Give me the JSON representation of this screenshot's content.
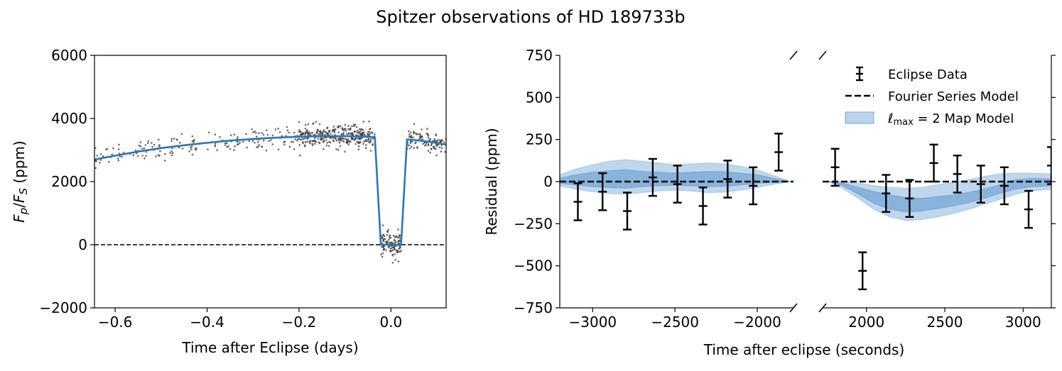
{
  "figure_title": "Spitzer observations of HD 189733b",
  "colors": {
    "model_line": "#2878b5",
    "band_outer": "#a9c9e6",
    "band_inner": "#7aaad6",
    "scatter": "#3a3a3a",
    "errorbar": "#000000"
  },
  "chart_data": [
    {
      "type": "scatter",
      "ylabel_html": "F_p/F_S (ppm)",
      "ylabel": {
        "base1": "F",
        "sub1": "p",
        "sep": "/",
        "base2": "F",
        "sub2": "S",
        "unit": " (ppm)"
      },
      "xlabel": "Time after Eclipse (days)",
      "xlim": [
        -0.645,
        0.12
      ],
      "ylim": [
        -2000,
        6000
      ],
      "xticks": [
        -0.6,
        -0.4,
        -0.2,
        0.0
      ],
      "xtick_labels": [
        "−0.6",
        "−0.4",
        "−0.2",
        "0.0"
      ],
      "yticks": [
        -2000,
        0,
        2000,
        4000,
        6000
      ],
      "ytick_labels": [
        "−2000",
        "0",
        "2000",
        "4000",
        "6000"
      ],
      "zero_line": {
        "y": 0,
        "style": "dashed"
      },
      "model": {
        "name": "",
        "x": [
          -0.645,
          -0.6,
          -0.55,
          -0.5,
          -0.45,
          -0.4,
          -0.35,
          -0.3,
          -0.25,
          -0.2,
          -0.15,
          -0.1,
          -0.05,
          -0.035,
          -0.022,
          0.022,
          0.035,
          0.05,
          0.08,
          0.12
        ],
        "y": [
          2700,
          2820,
          2950,
          3060,
          3150,
          3230,
          3300,
          3350,
          3390,
          3420,
          3440,
          3440,
          3420,
          3400,
          0,
          0,
          3330,
          3320,
          3270,
          3170
        ]
      },
      "scatter": {
        "description_points_generated_from_model": true,
        "segments": [
          {
            "x_start": -0.645,
            "x_end": -0.2,
            "count": 170,
            "spread": 170
          },
          {
            "x_start": -0.2,
            "x_end": -0.035,
            "count": 330,
            "spread": 170
          },
          {
            "x_start": -0.022,
            "x_end": 0.022,
            "count": 120,
            "spread": 200
          },
          {
            "x_start": 0.035,
            "x_end": 0.12,
            "count": 110,
            "spread": 160
          }
        ]
      }
    },
    {
      "type": "errorbar",
      "ylabel": "Residual (ppm)",
      "xlabel": "Time after eclipse (seconds)",
      "ylim": [
        -750,
        750
      ],
      "yticks": [
        -750,
        -500,
        -250,
        0,
        250,
        500,
        750
      ],
      "ytick_labels": [
        "−750",
        "−500",
        "−250",
        "0",
        "250",
        "500",
        "750"
      ],
      "broken_axis": true,
      "left_panel": {
        "xlim": [
          -3200,
          -1780
        ],
        "xticks": [
          -3000,
          -2500,
          -2000
        ],
        "xtick_labels": [
          "−3000",
          "−2500",
          "−2000"
        ],
        "data": [
          {
            "x": -3090,
            "y": -120,
            "err": 110
          },
          {
            "x": -2940,
            "y": -60,
            "err": 110
          },
          {
            "x": -2790,
            "y": -175,
            "err": 110
          },
          {
            "x": -2635,
            "y": 25,
            "err": 110
          },
          {
            "x": -2485,
            "y": -15,
            "err": 110
          },
          {
            "x": -2330,
            "y": -145,
            "err": 110
          },
          {
            "x": -2180,
            "y": 15,
            "err": 110
          },
          {
            "x": -2025,
            "y": -25,
            "err": 110
          },
          {
            "x": -1870,
            "y": 175,
            "err": 110
          }
        ],
        "band_x": [
          -3200,
          -3100,
          -3000,
          -2900,
          -2800,
          -2700,
          -2600,
          -2500,
          -2400,
          -2300,
          -2200,
          -2100,
          -2000,
          -1900,
          -1800
        ],
        "band_inner_upper": [
          20,
          40,
          55,
          65,
          70,
          60,
          55,
          50,
          55,
          60,
          58,
          50,
          40,
          20,
          0
        ],
        "band_inner_lower": [
          -10,
          -20,
          -30,
          -35,
          -38,
          -30,
          -25,
          -22,
          -25,
          -30,
          -28,
          -20,
          -10,
          -5,
          0
        ],
        "band_outer_upper": [
          40,
          75,
          100,
          120,
          130,
          120,
          110,
          100,
          105,
          110,
          105,
          90,
          70,
          35,
          0
        ],
        "band_outer_lower": [
          -25,
          -45,
          -60,
          -70,
          -75,
          -65,
          -55,
          -50,
          -55,
          -65,
          -62,
          -50,
          -35,
          -15,
          0
        ]
      },
      "right_panel": {
        "xlim": [
          1720,
          3180
        ],
        "xticks": [
          2000,
          2500,
          3000
        ],
        "xtick_labels": [
          "2000",
          "2500",
          "3000"
        ],
        "data": [
          {
            "x": 1800,
            "y": 85,
            "err": 110
          },
          {
            "x": 1975,
            "y": -530,
            "err": 110
          },
          {
            "x": 2125,
            "y": -70,
            "err": 110
          },
          {
            "x": 2275,
            "y": -100,
            "err": 110
          },
          {
            "x": 2430,
            "y": 110,
            "err": 110
          },
          {
            "x": 2580,
            "y": 45,
            "err": 110
          },
          {
            "x": 2730,
            "y": -15,
            "err": 110
          },
          {
            "x": 2880,
            "y": -25,
            "err": 110
          },
          {
            "x": 3035,
            "y": -165,
            "err": 110
          },
          {
            "x": 3180,
            "y": 95,
            "err": 110
          }
        ],
        "band_x": [
          1760,
          1850,
          1950,
          2050,
          2150,
          2250,
          2350,
          2450,
          2550,
          2650,
          2750,
          2850,
          2950,
          3050,
          3180
        ],
        "band_inner_upper": [
          0,
          -10,
          -35,
          -60,
          -80,
          -95,
          -100,
          -90,
          -80,
          -65,
          -45,
          -20,
          10,
          20,
          15
        ],
        "band_inner_lower": [
          0,
          -25,
          -75,
          -130,
          -165,
          -180,
          -175,
          -160,
          -145,
          -125,
          -100,
          -70,
          -45,
          -30,
          -25
        ],
        "band_outer_upper": [
          0,
          0,
          -10,
          -25,
          -35,
          -40,
          -35,
          -20,
          -5,
          10,
          30,
          45,
          50,
          50,
          45
        ],
        "band_outer_lower": [
          0,
          -40,
          -100,
          -165,
          -210,
          -230,
          -225,
          -210,
          -190,
          -165,
          -135,
          -105,
          -75,
          -55,
          -45
        ]
      },
      "legend": {
        "placement": "upper-right",
        "entries": [
          {
            "kind": "errorbar",
            "label": "Eclipse Data"
          },
          {
            "kind": "dashed",
            "label": "Fourier Series Model"
          },
          {
            "kind": "band",
            "label_prefix": "ℓ",
            "label_sub": "max",
            "label_suffix": " = 2 Map Model"
          }
        ]
      }
    }
  ]
}
